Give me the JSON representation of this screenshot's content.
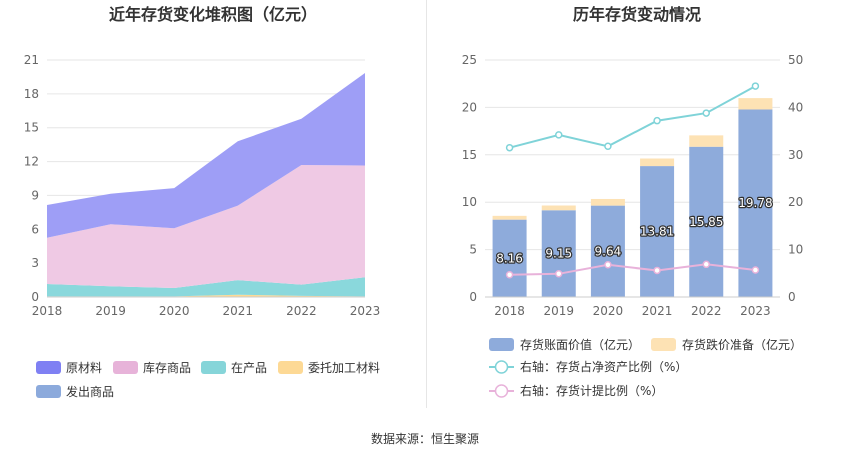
{
  "source_text": "数据来源：恒生聚源",
  "chart_data": [
    {
      "type": "area",
      "stacked": true,
      "title": "近年存货变化堆积图（亿元）",
      "x": [
        "2018",
        "2019",
        "2020",
        "2021",
        "2022",
        "2023"
      ],
      "ylim": [
        0,
        21
      ],
      "yticks": [
        "0",
        "3",
        "6",
        "9",
        "12",
        "15",
        "18",
        "21"
      ],
      "grid": true,
      "legend_position": "bottom",
      "series": [
        {
          "name": "委托加工材料",
          "color": "#fdd995",
          "values": [
            0.05,
            0.05,
            0.05,
            0.2,
            0.1,
            0.05
          ]
        },
        {
          "name": "在产品",
          "color": "#8ad8dc",
          "values": [
            1.1,
            0.9,
            0.75,
            1.3,
            1.0,
            1.7
          ]
        },
        {
          "name": "库存商品",
          "color": "#efc9e4",
          "values": [
            4.1,
            5.5,
            5.3,
            6.6,
            10.6,
            9.9
          ]
        },
        {
          "name": "原材料",
          "color": "#9e9ef6",
          "values": [
            2.9,
            2.7,
            3.55,
            5.7,
            4.1,
            8.2
          ]
        },
        {
          "name": "发出商品",
          "color": "#8caadc",
          "values": [
            0,
            0,
            0,
            0,
            0,
            0
          ]
        }
      ],
      "legend": [
        {
          "name": "原材料",
          "color": "#7f80f3"
        },
        {
          "name": "库存商品",
          "color": "#e7b3d9"
        },
        {
          "name": "在产品",
          "color": "#86d5d9"
        },
        {
          "name": "委托加工材料",
          "color": "#fdd995"
        },
        {
          "name": "发出商品",
          "color": "#8caadc"
        }
      ]
    },
    {
      "type": "bar",
      "stacked": true,
      "title": "历年存货变动情况",
      "categories": [
        "2018",
        "2019",
        "2020",
        "2021",
        "2022",
        "2023"
      ],
      "ylim": [
        0,
        25
      ],
      "yticks": [
        "0",
        "5",
        "10",
        "15",
        "20",
        "25"
      ],
      "y2lim": [
        0,
        50
      ],
      "y2ticks": [
        "0",
        "10",
        "20",
        "30",
        "40",
        "50"
      ],
      "grid": true,
      "legend_position": "bottom",
      "series": [
        {
          "name": "存货账面价值（亿元）",
          "color": "#8eabdb",
          "values": [
            8.16,
            9.15,
            9.64,
            13.81,
            15.85,
            19.78
          ],
          "labels": [
            "8.16",
            "9.15",
            "9.64",
            "13.81",
            "15.85",
            "19.78"
          ]
        },
        {
          "name": "存货跌价准备（亿元）",
          "color": "#fde2b4",
          "values": [
            0.4,
            0.5,
            0.7,
            0.8,
            1.2,
            1.2
          ]
        }
      ],
      "lines": [
        {
          "name": "右轴：存货占净资产比例（%）",
          "color": "#7fd3d8",
          "axis": "right",
          "values": [
            31.5,
            34.2,
            31.8,
            37.2,
            38.8,
            44.5
          ]
        },
        {
          "name": "右轴：存货计提比例（%）",
          "color": "#e8b2da",
          "axis": "right",
          "values": [
            4.7,
            4.9,
            6.8,
            5.6,
            6.9,
            5.7
          ]
        }
      ]
    }
  ]
}
